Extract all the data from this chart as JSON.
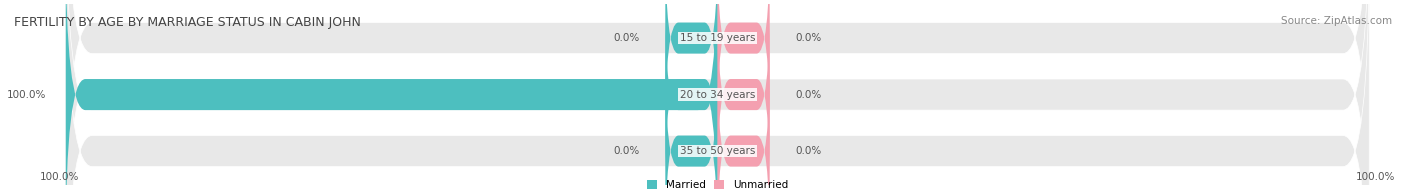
{
  "title": "FERTILITY BY AGE BY MARRIAGE STATUS IN CABIN JOHN",
  "source": "Source: ZipAtlas.com",
  "rows": [
    {
      "label": "15 to 19 years",
      "married": 0.0,
      "unmarried": 0.0
    },
    {
      "label": "20 to 34 years",
      "married": 100.0,
      "unmarried": 0.0
    },
    {
      "label": "35 to 50 years",
      "married": 0.0,
      "unmarried": 0.0
    }
  ],
  "married_color": "#4dbfbf",
  "unmarried_color": "#f4a0b0",
  "bar_bg_color": "#e8e8e8",
  "bar_height": 0.55,
  "xlim": [
    -100,
    100
  ],
  "x_left_label": "100.0%",
  "x_right_label": "100.0%",
  "legend_married": "Married",
  "legend_unmarried": "Unmarried",
  "title_fontsize": 9,
  "source_fontsize": 7.5,
  "label_fontsize": 7.5,
  "tick_fontsize": 7.5
}
